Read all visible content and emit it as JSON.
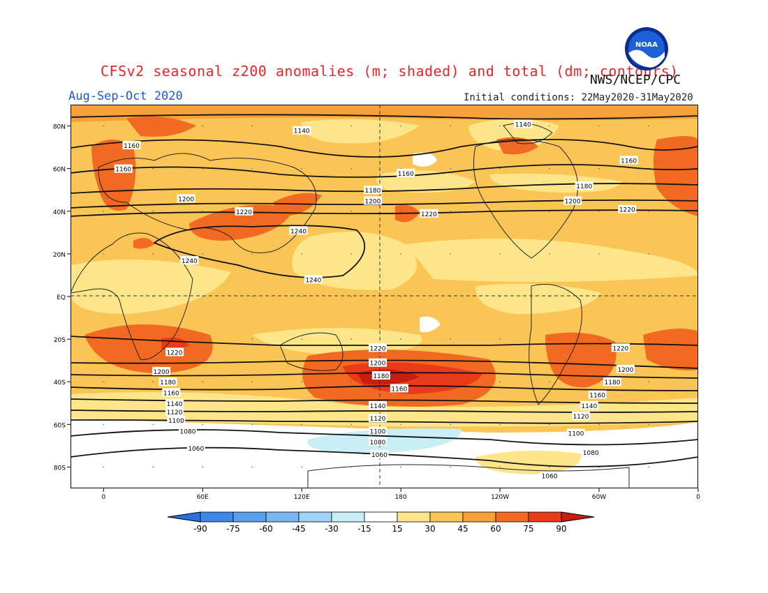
{
  "header": {
    "title": "CFSv2 seasonal z200 anomalies (m; shaded) and total (dm; contours)",
    "agency": "NWS/NCEP/CPC",
    "season": "Aug-Sep-Oct 2020",
    "initial_conditions": "Initial conditions: 22May2020-31May2020",
    "logo_text": "NOAA"
  },
  "map": {
    "lat_ticks": [
      "80N",
      "60N",
      "40N",
      "20N",
      "EQ",
      "20S",
      "40S",
      "60S",
      "80S"
    ],
    "lon_ticks": [
      "0",
      "60E",
      "120E",
      "180",
      "120W",
      "60W",
      "0"
    ],
    "contour_labels": [
      {
        "text": "1140",
        "lon": 120,
        "lat": 78
      },
      {
        "text": "1140",
        "lon": 254,
        "lat": 81
      },
      {
        "text": "1160",
        "lon": 17,
        "lat": 71
      },
      {
        "text": "1160",
        "lon": 12,
        "lat": 60
      },
      {
        "text": "1160",
        "lon": 183,
        "lat": 58
      },
      {
        "text": "1160",
        "lon": 318,
        "lat": 64
      },
      {
        "text": "1180",
        "lon": 163,
        "lat": 50
      },
      {
        "text": "1180",
        "lon": 291,
        "lat": 52
      },
      {
        "text": "1200",
        "lon": 50,
        "lat": 46
      },
      {
        "text": "1200",
        "lon": 163,
        "lat": 45
      },
      {
        "text": "1200",
        "lon": 284,
        "lat": 45
      },
      {
        "text": "1220",
        "lon": 85,
        "lat": 40
      },
      {
        "text": "1220",
        "lon": 197,
        "lat": 39
      },
      {
        "text": "1220",
        "lon": 317,
        "lat": 41
      },
      {
        "text": "1240",
        "lon": 118,
        "lat": 31
      },
      {
        "text": "1240",
        "lon": 52,
        "lat": 17
      },
      {
        "text": "1240",
        "lon": 127,
        "lat": 8
      },
      {
        "text": "1220",
        "lon": 43,
        "lat": -26
      },
      {
        "text": "1220",
        "lon": 166,
        "lat": -24
      },
      {
        "text": "1220",
        "lon": 313,
        "lat": -24
      },
      {
        "text": "1200",
        "lon": 35,
        "lat": -35
      },
      {
        "text": "1200",
        "lon": 166,
        "lat": -31
      },
      {
        "text": "1200",
        "lon": 316,
        "lat": -34
      },
      {
        "text": "1180",
        "lon": 39,
        "lat": -40
      },
      {
        "text": "1180",
        "lon": 168,
        "lat": -37
      },
      {
        "text": "1180",
        "lon": 308,
        "lat": -40
      },
      {
        "text": "1160",
        "lon": 41,
        "lat": -45
      },
      {
        "text": "1160",
        "lon": 179,
        "lat": -43
      },
      {
        "text": "1160",
        "lon": 299,
        "lat": -46
      },
      {
        "text": "1140",
        "lon": 43,
        "lat": -50
      },
      {
        "text": "1140",
        "lon": 166,
        "lat": -51
      },
      {
        "text": "1140",
        "lon": 294,
        "lat": -51
      },
      {
        "text": "1120",
        "lon": 43,
        "lat": -54
      },
      {
        "text": "1120",
        "lon": 166,
        "lat": -57
      },
      {
        "text": "1120",
        "lon": 289,
        "lat": -56
      },
      {
        "text": "1100",
        "lon": 44,
        "lat": -58
      },
      {
        "text": "1100",
        "lon": 166,
        "lat": -63
      },
      {
        "text": "1100",
        "lon": 286,
        "lat": -64
      },
      {
        "text": "1080",
        "lon": 51,
        "lat": -63
      },
      {
        "text": "1080",
        "lon": 166,
        "lat": -68
      },
      {
        "text": "1080",
        "lon": 295,
        "lat": -73
      },
      {
        "text": "1060",
        "lon": 56,
        "lat": -71
      },
      {
        "text": "1060",
        "lon": 167,
        "lat": -74
      },
      {
        "text": "1060",
        "lon": 270,
        "lat": -84
      }
    ]
  },
  "colorbar": {
    "values": [
      "-90",
      "-75",
      "-60",
      "-45",
      "-30",
      "-15",
      "15",
      "30",
      "45",
      "60",
      "75",
      "90"
    ],
    "colors": [
      "#2a6fdc",
      "#3d87e6",
      "#5a9fec",
      "#79b6f0",
      "#9fd3f4",
      "#c8eef6",
      "#ffffff",
      "#fde68a",
      "#fbc555",
      "#f7a13a",
      "#f26a22",
      "#e93b18",
      "#c81e10"
    ]
  }
}
